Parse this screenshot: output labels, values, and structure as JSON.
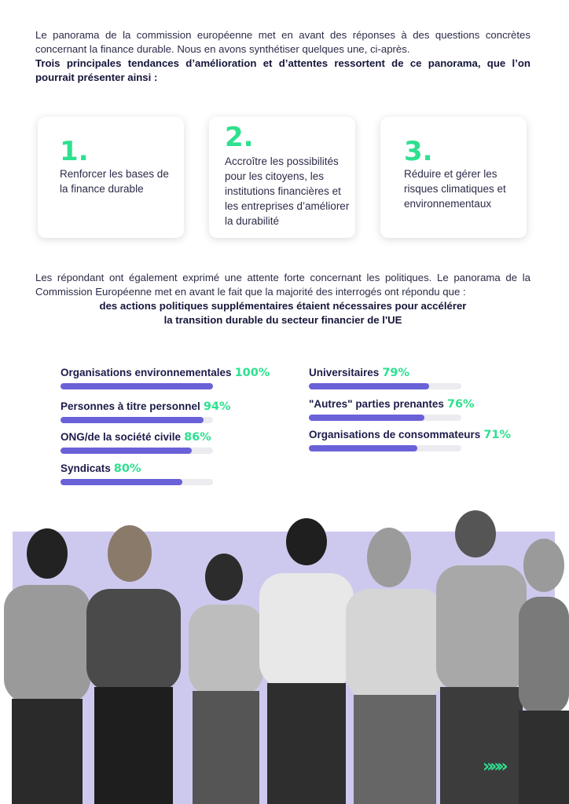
{
  "intro": {
    "line1": "Le panorama de la commission européenne met en avant des réponses à des questions concrètes concernant la finance durable. Nous en avons synthétiser quelques une, ci-après.",
    "bold": "Trois principales tendances d’amélioration et d’attentes ressortent de ce panorama, que l’on pourrait présenter ainsi :"
  },
  "cards": [
    {
      "number": "1.",
      "text": "Renforcer les bases de la finance durable"
    },
    {
      "number": "2.",
      "text": "Accroître les possibilités pour les citoyens, les institutions financières et les entreprises d’améliorer la durabilité"
    },
    {
      "number": "3.",
      "text": "Réduire et gérer les risques climatiques et environnementaux"
    }
  ],
  "para2": {
    "text": "Les répondant ont également exprimé une attente forte concernant les politiques.  Le panorama de la Commission Européenne met en avant le fait que la majorité des interrogés ont répondu que :",
    "bold_line1": "des actions politiques supplémentaires étaient nécessaires pour accélérer",
    "bold_line2": "la transition durable du secteur financier de l'UE"
  },
  "chart_data": {
    "type": "bar",
    "categories": [
      "Organisations environnementales",
      "Personnes à titre personnel",
      "ONG/de la société civile",
      "Syndicats",
      "Universitaires",
      "\"Autres\" parties prenantes",
      "Organisations de consommateurs"
    ],
    "values": [
      100,
      94,
      86,
      80,
      79,
      76,
      71
    ],
    "value_labels": [
      "100%",
      "94%",
      "86%",
      "80%",
      "79%",
      "76%",
      "71%"
    ],
    "ylim": [
      0,
      100
    ],
    "bar_color": "#6a61d8",
    "track_color": "#ebebf0",
    "value_color": "#2ee08f"
  },
  "colors": {
    "accent": "#2ee08f",
    "bar": "#6a61d8",
    "photo_band": "#cdc9ee"
  },
  "icons": {
    "decor": "double-chevron-right-icon",
    "decor_glyph": "»»»"
  }
}
